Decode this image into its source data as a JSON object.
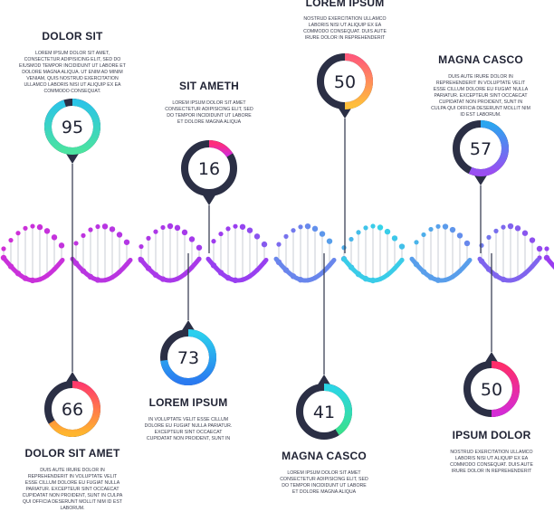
{
  "colors": {
    "dark": "#2b2f45",
    "line": "#3d4257",
    "magenta": "#d12fd6",
    "purple": "#9a3df0",
    "blue": "#4a8ef5",
    "cyan": "#35d3e8"
  },
  "markers": [
    {
      "id": "dolor-sit",
      "title": "DOLOR SIT",
      "value": "95",
      "text": "LOREM IPSUM DOLOR SIT AMET, CONSECTETUR ADIPISICING ELIT, SED DO EIUSMOD TEMPOR INCIDIDUNT UT LABORE ET DOLORE MAGNA ALIQUA. UT ENIM AD MINIM VENIAM, QUIS NOSTRUD EXERCITATION ULLAMCO LABORIS NISI UT ALIQUIP EX EA COMMODO CONSEQUAT.",
      "progress": 0.95,
      "gradient": [
        "#2bc4e8",
        "#4be3a0"
      ]
    },
    {
      "id": "sit-ameth",
      "title": "SIT AMETH",
      "value": "16",
      "text": "LOREM IPSUM DOLOR SIT AMET CONSECTETUR ADIPISICING ELIT, SED DO TEMPOR INCIDIDUNT UT LABORE ET DOLORE MAGNA ALIQUA",
      "progress": 0.16,
      "gradient": [
        "#ff2d7a",
        "#d42bd6"
      ]
    },
    {
      "id": "lorem-ipsum-top",
      "title": "LOREM IPSUM",
      "value": "50",
      "text": "NOSTRUD EXERCITATION ULLAMCO LABORIS NISI UT ALIQUIP EX EA COMMODO CONSEQUAT. DUIS AUTE IRURE DOLOR IN REPREHENDERIT",
      "progress": 0.5,
      "gradient": [
        "#ff5a7a",
        "#ffc03a"
      ]
    },
    {
      "id": "magna-casco-top",
      "title": "MAGNA CASCO",
      "value": "57",
      "text": "DUIS AUTE IRURE DOLOR IN REPREHENDERIT IN VOLUPTATE VELIT ESSE CILLUM DOLORE EU FUGIAT NULLA PARIATUR. EXCEPTEUR SINT OCCAECAT CUPIDATAT NON PROIDENT, SUNT IN CULPA QUI OFFICIA DESERUNT MOLLIT NIM ID EST LABORUM.",
      "progress": 0.57,
      "gradient": [
        "#2aa6f0",
        "#9b4df2"
      ]
    },
    {
      "id": "lorem-ipsum-bottom",
      "title": "LOREM IPSUM",
      "value": "73",
      "text": "IN VOLUPTATE VELIT ESSE CILLUM DOLORE EU FUGIAT NULLA PARIATUR. EXCEPTEUR SINT OCCAECAT CUPIDATAT NON PROIDENT, SUNT IN",
      "progress": 0.73,
      "gradient": [
        "#2bd0ee",
        "#2a7af0"
      ]
    },
    {
      "id": "dolor-sit-amet",
      "title": "DOLOR SIT AMET",
      "value": "66",
      "text": "DUIS AUTE IRURE DOLOR IN REPREHENDERIT IN VOLUPTATE VELIT ESSE CILLUM DOLORE EU FUGIAT NULLA PARIATUR. EXCEPTEUR SINT OCCAECAT CUPIDATAT NON PROIDENT, SUNT IN CULPA QUI OFFICIA DESERUNT MOLLIT NIM ID EST LABORUM.",
      "progress": 0.66,
      "gradient": [
        "#ff3b6b",
        "#ffb52e"
      ]
    },
    {
      "id": "magna-casco-bottom",
      "title": "MAGNA CASCO",
      "value": "41",
      "text": "LOREM IPSUM DOLOR SIT AMET CONSECTETUR ADIPISICING ELIT, SED DO TEMPOR INCIDIDUNT UT LABORE ET DOLORE MAGNA ALIQUA",
      "progress": 0.41,
      "gradient": [
        "#2bd6e6",
        "#39e08e"
      ]
    },
    {
      "id": "ipsum-dolor",
      "title": "IPSUM DOLOR",
      "value": "50",
      "text": "NOSTRUD EXERCITATION ULLAMCO LABORIS NISI UT ALIQUIP EX EA COMMODO CONSEQUAT. DUIS AUTE IRURE DOLOR IN REPREHENDERIT",
      "progress": 0.5,
      "gradient": [
        "#ff2d6a",
        "#d42bd6"
      ]
    }
  ]
}
